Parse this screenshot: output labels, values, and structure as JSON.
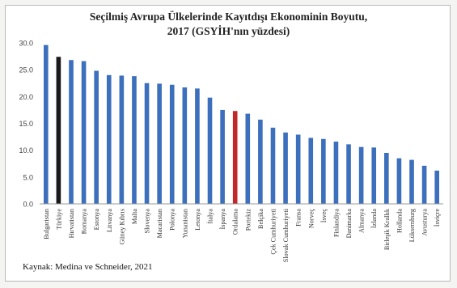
{
  "chart_data": {
    "type": "bar",
    "title_line1": "Seçilmiş Avrupa Ülkelerinde Kayıtdışı Ekonominin Boyutu,",
    "title_line2": "2017 (GSYİH'nın yüzdesi)",
    "categories": [
      "Bulgaristan",
      "Türkiye",
      "Hırvatistan",
      "Romanya",
      "Estonya",
      "Litvanya",
      "Güney Kıbrıs",
      "Malta",
      "Slovenya",
      "Macaristan",
      "Polonya",
      "Yunanistan",
      "Letonya",
      "İtalya",
      "İspanya",
      "Ordalama",
      "Portekiz",
      "Belçika",
      "Çek Cumhuriyeti",
      "Slovak Cumhuriyeti",
      "Fransa",
      "Norveç",
      "İsveç",
      "Finlandiya",
      "Danimarka",
      "Almanya",
      "İzlanda",
      "Birleşik Krallık",
      "Hollanda",
      "Lüksemburg",
      "Avusturya",
      "İsviçre"
    ],
    "values": [
      29.6,
      27.4,
      26.8,
      26.6,
      24.8,
      24.0,
      23.9,
      23.8,
      22.5,
      22.4,
      22.2,
      21.7,
      21.5,
      19.8,
      17.5,
      17.3,
      16.8,
      15.7,
      14.2,
      13.3,
      12.9,
      12.3,
      12.1,
      11.6,
      11.1,
      10.6,
      10.5,
      9.5,
      8.5,
      8.2,
      7.1,
      6.2
    ],
    "highlight": {
      "Türkiye": "#1a1a1a",
      "Ordalama": "#c0282a"
    },
    "bar_color": "#3c6fbc",
    "ylim": [
      0,
      30
    ],
    "yticks": [
      "0.0",
      "5.0",
      "10.0",
      "15.0",
      "20.0",
      "25.0",
      "30.0"
    ],
    "grid": false,
    "xlabel": "",
    "ylabel": ""
  },
  "source": "Kaynak: Medina ve Schneider, 2021"
}
